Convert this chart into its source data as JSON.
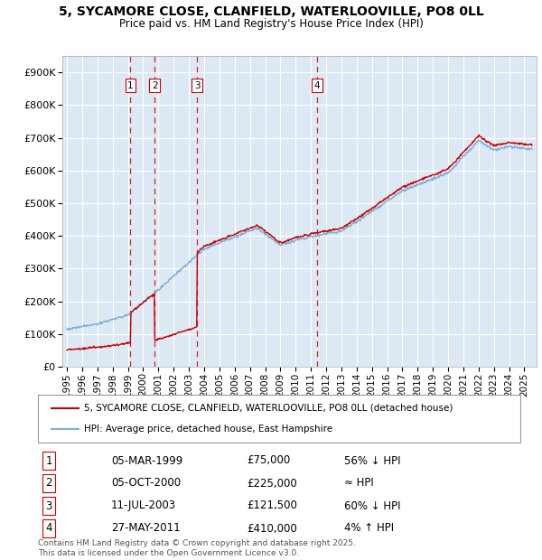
{
  "title": "5, SYCAMORE CLOSE, CLANFIELD, WATERLOOVILLE, PO8 0LL",
  "subtitle": "Price paid vs. HM Land Registry's House Price Index (HPI)",
  "sale_dates_float": [
    1999.17,
    2000.75,
    2003.53,
    2011.41
  ],
  "sale_prices": [
    75000,
    225000,
    121500,
    410000
  ],
  "sale_labels": [
    "1",
    "2",
    "3",
    "4"
  ],
  "sale_info": [
    {
      "label": "1",
      "date": "05-MAR-1999",
      "price": "£75,000",
      "vs_hpi": "56% ↓ HPI"
    },
    {
      "label": "2",
      "date": "05-OCT-2000",
      "price": "£225,000",
      "vs_hpi": "≈ HPI"
    },
    {
      "label": "3",
      "date": "11-JUL-2003",
      "price": "£121,500",
      "vs_hpi": "60% ↓ HPI"
    },
    {
      "label": "4",
      "date": "27-MAY-2011",
      "price": "£410,000",
      "vs_hpi": "4% ↑ HPI"
    }
  ],
  "line_color_red": "#cc0000",
  "line_color_blue": "#7ab0d4",
  "bg_color": "#dce9f5",
  "ylim": [
    0,
    950000
  ],
  "yticks": [
    0,
    100000,
    200000,
    300000,
    400000,
    500000,
    600000,
    700000,
    800000,
    900000
  ],
  "xlim_start": 1994.7,
  "xlim_end": 2025.8,
  "xtick_years": [
    1995,
    1996,
    1997,
    1998,
    1999,
    2000,
    2001,
    2002,
    2003,
    2004,
    2005,
    2006,
    2007,
    2008,
    2009,
    2010,
    2011,
    2012,
    2013,
    2014,
    2015,
    2016,
    2017,
    2018,
    2019,
    2020,
    2021,
    2022,
    2023,
    2024,
    2025
  ],
  "legend_line1": "5, SYCAMORE CLOSE, CLANFIELD, WATERLOOVILLE, PO8 0LL (detached house)",
  "legend_line2": "HPI: Average price, detached house, East Hampshire",
  "footer": "Contains HM Land Registry data © Crown copyright and database right 2025.\nThis data is licensed under the Open Government Licence v3.0."
}
